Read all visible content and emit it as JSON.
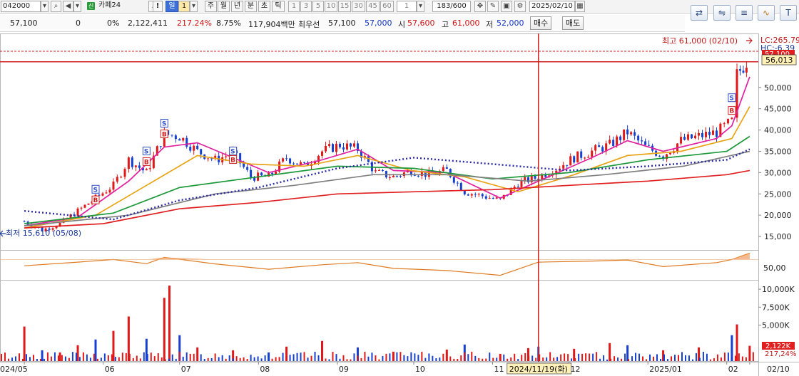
{
  "toolbar": {
    "code": "042000",
    "badge": "신",
    "name": "카페24",
    "bang": "!",
    "period_day": "일",
    "period_count": "1",
    "period_week": "주",
    "period_month": "월",
    "period_year": "년",
    "period_minute": "분",
    "period_second": "초",
    "period_tick": "틱",
    "intervals": [
      "1",
      "3",
      "5",
      "10",
      "15",
      "30",
      "45",
      "60"
    ],
    "interval_select": "1",
    "page_counter": "183/600",
    "date": "2025/02/10"
  },
  "right_icons": [
    "swap-icon",
    "compare-icon",
    "list-icon",
    "line-chart-icon",
    "text-tool-icon"
  ],
  "info": {
    "price": "57,100",
    "change": "0",
    "change_pct": "0%",
    "volume": "2,122,411",
    "volume_ratio": "217.24%",
    "turnover_rate": "8.75%",
    "amount": "117,904백만",
    "best_label": "최우선",
    "best_price": "57,100",
    "bid_price": "57,000",
    "open_label": "시",
    "open": "57,600",
    "high_label": "고",
    "high": "61,000",
    "low_label": "저",
    "low": "52,000",
    "buy_button": "매수",
    "sell_button": "매도"
  },
  "chart_data": {
    "type": "candlestick",
    "price_axis": {
      "ticks": [
        15000,
        20000,
        25000,
        30000,
        35000,
        40000,
        45000,
        50000
      ],
      "tick_labels": [
        "15,000",
        "20,000",
        "25,000",
        "30,000",
        "35,000",
        "40,000",
        "45,000",
        "50,000"
      ],
      "range": [
        12000,
        62500
      ]
    },
    "x_labels": [
      "024/05",
      "06",
      "07",
      "08",
      "09",
      "10",
      "11",
      "12",
      "2025/01",
      "02",
      "02/10"
    ],
    "x_label_dates": [
      "2024-05-01",
      "2024-06-01",
      "2024-07-01",
      "2024-08-01",
      "2024-09-01",
      "2024-10-01",
      "2024-11-01",
      "2024-12-01",
      "2025-01-01",
      "2025-02-01",
      "2025-02-10"
    ],
    "cursor_date_label": "2024/11/19(화)",
    "annotations": {
      "high": "최고 61,000 (02/10)",
      "low": "최저 15,610 (05/08)",
      "lc": "LC:265.79",
      "hc": "HC:-6.39",
      "price_tag": "57,100",
      "hline_tag": "56,013"
    },
    "price_path": [
      {
        "date": "2024-05-01",
        "value": 18500
      },
      {
        "date": "2024-05-08",
        "value": 16500
      },
      {
        "date": "2024-05-15",
        "value": 18000
      },
      {
        "date": "2024-05-22",
        "value": 21000
      },
      {
        "date": "2024-05-29",
        "value": 24000
      },
      {
        "date": "2024-06-05",
        "value": 27000
      },
      {
        "date": "2024-06-11",
        "value": 33000
      },
      {
        "date": "2024-06-18",
        "value": 30000
      },
      {
        "date": "2024-06-25",
        "value": 39000
      },
      {
        "date": "2024-07-01",
        "value": 38500
      },
      {
        "date": "2024-07-08",
        "value": 35000
      },
      {
        "date": "2024-07-15",
        "value": 33000
      },
      {
        "date": "2024-07-22",
        "value": 34500
      },
      {
        "date": "2024-07-29",
        "value": 29000
      },
      {
        "date": "2024-08-05",
        "value": 29000
      },
      {
        "date": "2024-08-12",
        "value": 33500
      },
      {
        "date": "2024-08-19",
        "value": 31500
      },
      {
        "date": "2024-08-26",
        "value": 35000
      },
      {
        "date": "2024-09-02",
        "value": 36500
      },
      {
        "date": "2024-09-09",
        "value": 35500
      },
      {
        "date": "2024-09-16",
        "value": 30000
      },
      {
        "date": "2024-09-23",
        "value": 29000
      },
      {
        "date": "2024-09-30",
        "value": 30500
      },
      {
        "date": "2024-10-07",
        "value": 29500
      },
      {
        "date": "2024-10-14",
        "value": 30500
      },
      {
        "date": "2024-10-21",
        "value": 25500
      },
      {
        "date": "2024-10-28",
        "value": 24500
      },
      {
        "date": "2024-11-04",
        "value": 23500
      },
      {
        "date": "2024-11-11",
        "value": 27500
      },
      {
        "date": "2024-11-19",
        "value": 29000
      },
      {
        "date": "2024-11-26",
        "value": 31000
      },
      {
        "date": "2024-12-03",
        "value": 33500
      },
      {
        "date": "2024-12-10",
        "value": 35000
      },
      {
        "date": "2024-12-17",
        "value": 36500
      },
      {
        "date": "2024-12-24",
        "value": 39500
      },
      {
        "date": "2024-12-31",
        "value": 36000
      },
      {
        "date": "2025-01-07",
        "value": 34000
      },
      {
        "date": "2025-01-14",
        "value": 37500
      },
      {
        "date": "2025-01-21",
        "value": 38500
      },
      {
        "date": "2025-01-28",
        "value": 39500
      },
      {
        "date": "2025-02-03",
        "value": 42000
      },
      {
        "date": "2025-02-05",
        "value": 53000
      },
      {
        "date": "2025-02-10",
        "value": 57100
      }
    ],
    "series": [
      {
        "color": "#e0209f",
        "points": [
          {
            "date": "2024-05-01",
            "value": 17500
          },
          {
            "date": "2024-05-22",
            "value": 19500
          },
          {
            "date": "2024-06-11",
            "value": 28000
          },
          {
            "date": "2024-06-25",
            "value": 36000
          },
          {
            "date": "2024-07-08",
            "value": 37000
          },
          {
            "date": "2024-07-22",
            "value": 33500
          },
          {
            "date": "2024-08-05",
            "value": 30000
          },
          {
            "date": "2024-08-26",
            "value": 33000
          },
          {
            "date": "2024-09-09",
            "value": 35500
          },
          {
            "date": "2024-09-23",
            "value": 30500
          },
          {
            "date": "2024-10-14",
            "value": 30000
          },
          {
            "date": "2024-11-04",
            "value": 24000
          },
          {
            "date": "2024-11-19",
            "value": 28000
          },
          {
            "date": "2024-12-10",
            "value": 33500
          },
          {
            "date": "2024-12-24",
            "value": 37500
          },
          {
            "date": "2025-01-07",
            "value": 35000
          },
          {
            "date": "2025-01-28",
            "value": 38000
          },
          {
            "date": "2025-02-03",
            "value": 41000
          },
          {
            "date": "2025-02-10",
            "value": 52500
          }
        ]
      },
      {
        "color": "#e8a416",
        "points": [
          {
            "date": "2024-05-01",
            "value": 17000
          },
          {
            "date": "2024-05-29",
            "value": 20000
          },
          {
            "date": "2024-06-18",
            "value": 27000
          },
          {
            "date": "2024-07-08",
            "value": 34000
          },
          {
            "date": "2024-07-29",
            "value": 32000
          },
          {
            "date": "2024-08-19",
            "value": 31500
          },
          {
            "date": "2024-09-09",
            "value": 34000
          },
          {
            "date": "2024-09-30",
            "value": 30500
          },
          {
            "date": "2024-10-21",
            "value": 29000
          },
          {
            "date": "2024-11-11",
            "value": 25500
          },
          {
            "date": "2024-12-03",
            "value": 29500
          },
          {
            "date": "2024-12-24",
            "value": 34000
          },
          {
            "date": "2025-01-14",
            "value": 35000
          },
          {
            "date": "2025-02-03",
            "value": 38000
          },
          {
            "date": "2025-02-10",
            "value": 45500
          }
        ]
      },
      {
        "color": "#1c9a3a",
        "points": [
          {
            "date": "2024-05-01",
            "value": 18000
          },
          {
            "date": "2024-06-05",
            "value": 20500
          },
          {
            "date": "2024-07-01",
            "value": 26500
          },
          {
            "date": "2024-08-01",
            "value": 29000
          },
          {
            "date": "2024-09-01",
            "value": 31500
          },
          {
            "date": "2024-10-01",
            "value": 31000
          },
          {
            "date": "2024-11-01",
            "value": 28500
          },
          {
            "date": "2024-12-01",
            "value": 30000
          },
          {
            "date": "2025-01-01",
            "value": 33000
          },
          {
            "date": "2025-02-01",
            "value": 35000
          },
          {
            "date": "2025-02-10",
            "value": 38500
          }
        ]
      },
      {
        "color": "#808080",
        "points": [
          {
            "date": "2024-05-01",
            "value": 17500
          },
          {
            "date": "2024-06-11",
            "value": 20000
          },
          {
            "date": "2024-07-15",
            "value": 25000
          },
          {
            "date": "2024-08-15",
            "value": 27000
          },
          {
            "date": "2024-09-15",
            "value": 29500
          },
          {
            "date": "2024-10-15",
            "value": 29500
          },
          {
            "date": "2024-11-15",
            "value": 28000
          },
          {
            "date": "2024-12-15",
            "value": 29500
          },
          {
            "date": "2025-01-15",
            "value": 31500
          },
          {
            "date": "2025-02-10",
            "value": 35000
          }
        ]
      },
      {
        "color": "#2a2aa8",
        "points": [
          {
            "date": "2024-05-01",
            "value": 21000
          },
          {
            "date": "2024-06-05",
            "value": 19000
          },
          {
            "date": "2024-07-01",
            "value": 23500
          },
          {
            "date": "2024-08-01",
            "value": 26500
          },
          {
            "date": "2024-09-01",
            "value": 31000
          },
          {
            "date": "2024-10-01",
            "value": 33500
          },
          {
            "date": "2024-11-01",
            "value": 32000
          },
          {
            "date": "2024-12-01",
            "value": 30500
          },
          {
            "date": "2025-01-01",
            "value": 31500
          },
          {
            "date": "2025-02-01",
            "value": 33000
          },
          {
            "date": "2025-02-10",
            "value": 35500
          }
        ]
      },
      {
        "color": "#e01e1e",
        "points": [
          {
            "date": "2024-05-01",
            "value": 17000
          },
          {
            "date": "2024-06-01",
            "value": 18000
          },
          {
            "date": "2024-07-01",
            "value": 21500
          },
          {
            "date": "2024-08-01",
            "value": 23000
          },
          {
            "date": "2024-09-01",
            "value": 25000
          },
          {
            "date": "2024-10-01",
            "value": 25500
          },
          {
            "date": "2024-11-01",
            "value": 26000
          },
          {
            "date": "2024-12-01",
            "value": 27000
          },
          {
            "date": "2025-01-01",
            "value": 28000
          },
          {
            "date": "2025-02-01",
            "value": 29500
          },
          {
            "date": "2025-02-10",
            "value": 30500
          }
        ]
      }
    ],
    "signals": [
      {
        "date": "2024-05-29",
        "label": "S",
        "color": "#3050c8",
        "value": 26000
      },
      {
        "date": "2024-05-29",
        "label": "B",
        "color": "#d02020",
        "value": 23500
      },
      {
        "date": "2024-06-18",
        "label": "S",
        "color": "#3050c8",
        "value": 35000
      },
      {
        "date": "2024-06-18",
        "label": "B",
        "color": "#d02020",
        "value": 32500
      },
      {
        "date": "2024-06-25",
        "label": "S",
        "color": "#3050c8",
        "value": 41500
      },
      {
        "date": "2024-06-25",
        "label": "B",
        "color": "#d02020",
        "value": 39000
      },
      {
        "date": "2024-07-22",
        "label": "S",
        "color": "#3050c8",
        "value": 35000
      },
      {
        "date": "2024-07-22",
        "label": "B",
        "color": "#d02020",
        "value": 33000
      },
      {
        "date": "2025-02-03",
        "label": "S",
        "color": "#3050c8",
        "value": 47500
      },
      {
        "date": "2025-02-03",
        "label": "B",
        "color": "#d02020",
        "value": 44500
      }
    ],
    "indicator": {
      "tick_label": "50,00",
      "range": [
        0,
        100
      ],
      "points": [
        {
          "date": "2024-05-01",
          "value": 48
        },
        {
          "date": "2024-05-22",
          "value": 62
        },
        {
          "date": "2024-06-05",
          "value": 72
        },
        {
          "date": "2024-06-18",
          "value": 56
        },
        {
          "date": "2024-06-25",
          "value": 80
        },
        {
          "date": "2024-07-15",
          "value": 55
        },
        {
          "date": "2024-08-05",
          "value": 35
        },
        {
          "date": "2024-08-26",
          "value": 52
        },
        {
          "date": "2024-09-09",
          "value": 60
        },
        {
          "date": "2024-09-23",
          "value": 38
        },
        {
          "date": "2024-10-14",
          "value": 30
        },
        {
          "date": "2024-11-04",
          "value": 12
        },
        {
          "date": "2024-11-19",
          "value": 62
        },
        {
          "date": "2024-12-10",
          "value": 66
        },
        {
          "date": "2024-12-24",
          "value": 70
        },
        {
          "date": "2025-01-07",
          "value": 45
        },
        {
          "date": "2025-01-28",
          "value": 60
        },
        {
          "date": "2025-02-03",
          "value": 72
        },
        {
          "date": "2025-02-10",
          "value": 96
        }
      ]
    },
    "volume_axis": {
      "ticks": [
        5000,
        7500,
        10000
      ],
      "tick_labels": [
        "5,000K",
        "7,500K",
        "10,000K"
      ],
      "range": [
        0,
        11000
      ],
      "current_tag": "2,122K",
      "ratio_tag": "217,24%"
    },
    "volume": [
      {
        "date": "2024-05-01",
        "value": 4800
      },
      {
        "date": "2024-05-08",
        "value": 1500
      },
      {
        "date": "2024-05-15",
        "value": 1200
      },
      {
        "date": "2024-05-22",
        "value": 2200
      },
      {
        "date": "2024-05-29",
        "value": 3000
      },
      {
        "date": "2024-06-05",
        "value": 4200
      },
      {
        "date": "2024-06-11",
        "value": 6200
      },
      {
        "date": "2024-06-18",
        "value": 3100
      },
      {
        "date": "2024-06-25",
        "value": 8800
      },
      {
        "date": "2024-06-27",
        "value": 10500
      },
      {
        "date": "2024-07-01",
        "value": 3600
      },
      {
        "date": "2024-07-08",
        "value": 1900
      },
      {
        "date": "2024-07-22",
        "value": 1500
      },
      {
        "date": "2024-08-05",
        "value": 1200
      },
      {
        "date": "2024-08-12",
        "value": 2000
      },
      {
        "date": "2024-08-26",
        "value": 2800
      },
      {
        "date": "2024-09-09",
        "value": 1900
      },
      {
        "date": "2024-09-23",
        "value": 1300
      },
      {
        "date": "2024-10-14",
        "value": 1600
      },
      {
        "date": "2024-10-21",
        "value": 2300
      },
      {
        "date": "2024-11-04",
        "value": 1000
      },
      {
        "date": "2024-11-15",
        "value": 1800
      },
      {
        "date": "2024-11-19",
        "value": 2000
      },
      {
        "date": "2024-12-03",
        "value": 1700
      },
      {
        "date": "2024-12-17",
        "value": 2500
      },
      {
        "date": "2024-12-24",
        "value": 2200
      },
      {
        "date": "2025-01-07",
        "value": 1500
      },
      {
        "date": "2025-01-21",
        "value": 1900
      },
      {
        "date": "2025-02-03",
        "value": 3600
      },
      {
        "date": "2025-02-05",
        "value": 5100
      },
      {
        "date": "2025-02-10",
        "value": 2122
      }
    ]
  }
}
